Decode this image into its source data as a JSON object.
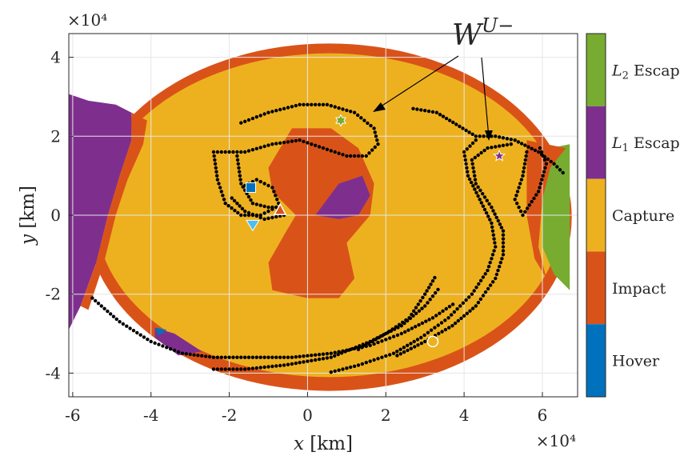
{
  "chart_data": {
    "type": "scatter",
    "x_exponent_label": "×10⁴",
    "y_exponent_label": "×10⁴",
    "xlabel": {
      "var": "x",
      "unit": " [km]"
    },
    "ylabel": {
      "var": "y",
      "unit": " [km]"
    },
    "x_ticks": [
      "-6",
      "-4",
      "-2",
      "0",
      "2",
      "4",
      "6"
    ],
    "y_ticks": [
      "4",
      "2",
      "0",
      "-2",
      "-4"
    ],
    "xlim": [
      -6.1,
      6.9
    ],
    "ylim": [
      -4.6,
      4.6
    ],
    "grid": true,
    "regions": [
      {
        "name": "Impact",
        "color": "#D95319"
      },
      {
        "name": "Capture",
        "color": "#EDB120"
      },
      {
        "name": "L1 Escape",
        "color": "#7E2F8E"
      },
      {
        "name": "L2 Escape",
        "color": "#77AC30"
      },
      {
        "name": "Hover",
        "color": "#0072BD"
      }
    ],
    "colorbar": [
      {
        "label_base": "L",
        "label_sub": "2",
        "label_rest": " Escape",
        "color": "#77AC30"
      },
      {
        "label_base": "L",
        "label_sub": "1",
        "label_rest": " Escape",
        "color": "#7E2F8E"
      },
      {
        "label_base": "",
        "label_sub": "",
        "label_rest": "Capture",
        "color": "#EDB120"
      },
      {
        "label_base": "",
        "label_sub": "",
        "label_rest": "Impact",
        "color": "#D95319"
      },
      {
        "label_base": "",
        "label_sub": "",
        "label_rest": "Hover",
        "color": "#0072BD"
      }
    ],
    "annotation": {
      "base": "W",
      "sup": "U−"
    },
    "markers": [
      {
        "shape": "square",
        "x": -1.45,
        "y": 0.7,
        "color": "#0072BD"
      },
      {
        "shape": "triangle-up",
        "x": -0.7,
        "y": 0.12,
        "color": "#D95319"
      },
      {
        "shape": "triangle-down",
        "x": -1.4,
        "y": -0.25,
        "color": "#4DBEEE"
      },
      {
        "shape": "hexagram",
        "x": 0.85,
        "y": 2.4,
        "color": "#77AC30"
      },
      {
        "shape": "pentagram",
        "x": 4.9,
        "y": 1.5,
        "color": "#7E2F8E"
      },
      {
        "shape": "circle",
        "x": 3.2,
        "y": -3.2,
        "color": "#EDB120"
      }
    ],
    "manifold_curves": [
      {
        "name": "left-inner",
        "points": [
          [
            -2.4,
            1.6
          ],
          [
            -2.3,
            0.9
          ],
          [
            -2.1,
            0.3
          ],
          [
            -1.7,
            0.0
          ],
          [
            -1.2,
            0.0
          ],
          [
            -0.8,
            0.2
          ],
          [
            -0.6,
            0.0
          ],
          [
            -1.1,
            -0.1
          ],
          [
            -1.6,
            0.1
          ],
          [
            -2.0,
            0.5
          ]
        ]
      },
      {
        "name": "left-loop",
        "points": [
          [
            -1.8,
            1.5
          ],
          [
            -1.7,
            0.8
          ],
          [
            -1.4,
            0.3
          ],
          [
            -1.0,
            0.2
          ],
          [
            -0.7,
            0.2
          ],
          [
            -0.9,
            0.7
          ],
          [
            -1.3,
            0.9
          ],
          [
            -1.7,
            0.7
          ]
        ]
      },
      {
        "name": "upper-arc",
        "points": [
          [
            -2.3,
            1.6
          ],
          [
            -1.6,
            1.6
          ],
          [
            -0.9,
            1.8
          ],
          [
            -0.2,
            1.9
          ],
          [
            0.4,
            1.7
          ],
          [
            1.0,
            1.5
          ],
          [
            1.5,
            1.5
          ],
          [
            1.8,
            1.8
          ],
          [
            1.7,
            2.2
          ],
          [
            1.2,
            2.6
          ],
          [
            0.5,
            2.8
          ],
          [
            -0.2,
            2.8
          ],
          [
            -1.0,
            2.6
          ],
          [
            -1.8,
            2.3
          ]
        ]
      },
      {
        "name": "top-right-arc",
        "points": [
          [
            2.7,
            2.7
          ],
          [
            3.3,
            2.6
          ],
          [
            3.8,
            2.3
          ],
          [
            4.3,
            2.0
          ],
          [
            4.8,
            2.0
          ],
          [
            5.3,
            1.9
          ],
          [
            5.9,
            1.6
          ],
          [
            6.3,
            1.3
          ],
          [
            6.6,
            1.0
          ]
        ]
      },
      {
        "name": "right-spiral",
        "points": [
          [
            4.3,
            1.9
          ],
          [
            4.0,
            1.6
          ],
          [
            4.1,
            1.0
          ],
          [
            4.4,
            0.4
          ],
          [
            4.7,
            -0.2
          ],
          [
            4.8,
            -0.8
          ],
          [
            4.6,
            -1.4
          ],
          [
            4.2,
            -2.0
          ],
          [
            3.6,
            -2.6
          ],
          [
            2.9,
            -3.1
          ],
          [
            2.2,
            -3.5
          ],
          [
            1.3,
            -3.8
          ],
          [
            0.5,
            -4.0
          ]
        ]
      },
      {
        "name": "right-spiral-2",
        "points": [
          [
            5.2,
            1.8
          ],
          [
            4.6,
            1.7
          ],
          [
            4.2,
            1.4
          ],
          [
            4.3,
            0.8
          ],
          [
            4.7,
            0.2
          ],
          [
            5.0,
            -0.4
          ],
          [
            5.0,
            -1.0
          ],
          [
            4.8,
            -1.6
          ],
          [
            4.3,
            -2.3
          ],
          [
            3.7,
            -2.8
          ],
          [
            3.0,
            -3.2
          ],
          [
            2.2,
            -3.6
          ]
        ]
      },
      {
        "name": "right-inner",
        "points": [
          [
            5.6,
            1.6
          ],
          [
            5.5,
            1.0
          ],
          [
            5.3,
            0.4
          ],
          [
            5.5,
            0.0
          ],
          [
            5.9,
            0.6
          ],
          [
            6.1,
            1.3
          ],
          [
            5.9,
            1.8
          ]
        ]
      },
      {
        "name": "bottom-arc",
        "points": [
          [
            -5.5,
            -2.1
          ],
          [
            -4.8,
            -2.7
          ],
          [
            -4.0,
            -3.2
          ],
          [
            -3.2,
            -3.5
          ],
          [
            -2.4,
            -3.6
          ],
          [
            -1.4,
            -3.6
          ],
          [
            -0.4,
            -3.6
          ],
          [
            0.6,
            -3.5
          ],
          [
            1.6,
            -3.3
          ],
          [
            2.4,
            -3.0
          ],
          [
            3.2,
            -2.6
          ],
          [
            3.8,
            -2.2
          ]
        ]
      },
      {
        "name": "bottom-arc-2",
        "points": [
          [
            -2.4,
            -3.9
          ],
          [
            -1.6,
            -3.9
          ],
          [
            -0.6,
            -3.8
          ],
          [
            0.6,
            -3.6
          ],
          [
            1.6,
            -3.2
          ],
          [
            2.4,
            -2.8
          ],
          [
            3.0,
            -2.3
          ],
          [
            3.4,
            -1.8
          ]
        ]
      },
      {
        "name": "lower-right-streak",
        "points": [
          [
            1.3,
            -3.4
          ],
          [
            2.0,
            -3.0
          ],
          [
            2.6,
            -2.6
          ],
          [
            3.0,
            -2.0
          ],
          [
            3.3,
            -1.5
          ]
        ]
      }
    ]
  }
}
